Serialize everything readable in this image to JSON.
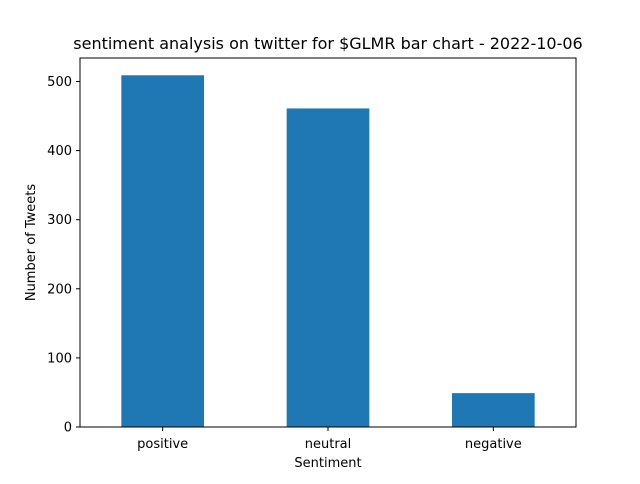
{
  "chart_data": {
    "type": "bar",
    "title": "sentiment analysis on twitter for $GLMR bar chart - 2022-10-06",
    "xlabel": "Sentiment",
    "ylabel": "Number of Tweets",
    "categories": [
      "positive",
      "neutral",
      "negative"
    ],
    "values": [
      509,
      461,
      49
    ],
    "ylim": [
      0,
      534
    ],
    "yticks": [
      0,
      100,
      200,
      300,
      400,
      500
    ],
    "grid": false,
    "bar_color": "#1f77b4"
  }
}
